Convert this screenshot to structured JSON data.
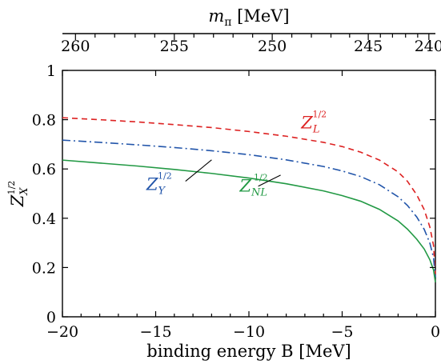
{
  "chart_data": {
    "type": "line",
    "x_axis": {
      "label_prefix": "binding energy",
      "label_var": "B",
      "label_unit": "[MeV]",
      "range": [
        -20,
        0
      ],
      "ticks": [
        -20,
        -15,
        -10,
        -5,
        0
      ],
      "tick_labels": [
        "−20",
        "−15",
        "−10",
        "−5",
        "0"
      ]
    },
    "top_axis": {
      "label_var": "m",
      "label_sub": "π",
      "label_unit": "[MeV]",
      "ticks": [
        {
          "label": "260",
          "x": -19.3
        },
        {
          "label": "255",
          "x": -14.0
        },
        {
          "label": "250",
          "x": -8.75
        },
        {
          "label": "245",
          "x": -3.6
        },
        {
          "label": "240",
          "x": -0.35
        }
      ],
      "minor_ticks": [
        -18.25,
        -17.2,
        -16.1,
        -15.05,
        -12.95,
        -11.9,
        -10.85,
        -9.8,
        -7.7,
        -6.65,
        -5.6,
        -4.6,
        -2.95,
        -2.3,
        -1.6,
        -0.95
      ]
    },
    "y_axis": {
      "label_main": "Z",
      "label_sub": "X",
      "label_sup": "1/2",
      "range": [
        0,
        1
      ],
      "ticks": [
        0,
        0.2,
        0.4,
        0.6,
        0.8,
        1
      ],
      "tick_labels": [
        "0",
        "0.2",
        "0.4",
        "0.6",
        "0.8",
        "1"
      ]
    },
    "series": [
      {
        "key": "L",
        "color": "#dd2222",
        "dash": "7,5",
        "x": [
          -20,
          -18,
          -16,
          -14,
          -12,
          -10,
          -8,
          -6,
          -5,
          -4,
          -3,
          -2,
          -1.5,
          -1,
          -0.6,
          -0.3,
          -0.1,
          0
        ],
        "y": [
          0.808,
          0.8,
          0.791,
          0.78,
          0.768,
          0.752,
          0.733,
          0.708,
          0.691,
          0.668,
          0.636,
          0.588,
          0.55,
          0.495,
          0.435,
          0.365,
          0.29,
          0.17
        ]
      },
      {
        "key": "Y",
        "color": "#2255aa",
        "dash": "10,4,2,4",
        "x": [
          -20,
          -18,
          -16,
          -14,
          -12,
          -10,
          -8,
          -6,
          -5,
          -4,
          -3,
          -2,
          -1.5,
          -1,
          -0.6,
          -0.3,
          -0.1,
          0
        ],
        "y": [
          0.717,
          0.708,
          0.698,
          0.687,
          0.674,
          0.658,
          0.637,
          0.61,
          0.592,
          0.569,
          0.536,
          0.487,
          0.452,
          0.405,
          0.355,
          0.3,
          0.24,
          0.16
        ]
      },
      {
        "key": "NL",
        "color": "#229944",
        "dash": "",
        "x": [
          -20,
          -18,
          -16,
          -14,
          -12,
          -10,
          -8,
          -6,
          -5,
          -4,
          -3,
          -2,
          -1.5,
          -1,
          -0.6,
          -0.3,
          -0.1,
          0
        ],
        "y": [
          0.636,
          0.624,
          0.612,
          0.598,
          0.582,
          0.563,
          0.54,
          0.511,
          0.492,
          0.469,
          0.436,
          0.389,
          0.356,
          0.315,
          0.275,
          0.232,
          0.19,
          0.14
        ]
      }
    ],
    "annotations": [
      {
        "key": "L",
        "main": "Z",
        "sub": "L",
        "sup": "1/2",
        "color": "#dd2222",
        "x": -7.2,
        "y": 0.765
      },
      {
        "key": "Y",
        "main": "Z",
        "sub": "Y",
        "sup": "1/2",
        "color": "#2255aa",
        "x": -15.5,
        "y": 0.515
      },
      {
        "key": "NL",
        "main": "Z",
        "sub": "NL",
        "sup": "1/2",
        "color": "#229944",
        "x": -10.5,
        "y": 0.508
      }
    ],
    "leaders": [
      {
        "key": "Y",
        "from": [
          -13.4,
          0.55
        ],
        "to": [
          -12.0,
          0.637
        ]
      },
      {
        "key": "NL",
        "from": [
          -9.5,
          0.53
        ],
        "to": [
          -8.3,
          0.575
        ]
      }
    ],
    "grid": false,
    "legend": "none"
  }
}
